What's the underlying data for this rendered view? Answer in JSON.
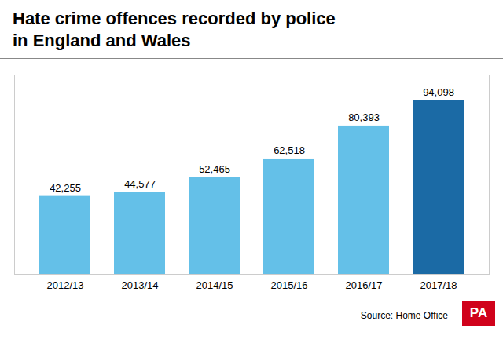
{
  "chart_data": {
    "type": "bar",
    "title": "Hate crime offences recorded by police\nin England and Wales",
    "categories": [
      "2012/13",
      "2013/14",
      "2014/15",
      "2015/16",
      "2016/17",
      "2017/18"
    ],
    "values": [
      42255,
      44577,
      52465,
      62518,
      80393,
      94098
    ],
    "value_labels": [
      "42,255",
      "44,577",
      "52,465",
      "62,518",
      "80,393",
      "94,098"
    ],
    "colors": [
      "#64C0E8",
      "#64C0E8",
      "#64C0E8",
      "#64C0E8",
      "#64C0E8",
      "#1B6AA5"
    ],
    "ylim": [
      0,
      108000
    ],
    "data_labels": true,
    "tick_labels": "x",
    "annotations": [
      {
        "text": "Source: Home Office"
      },
      {
        "text": "PA",
        "color": "#FFFFFF",
        "background": "#D0021B"
      }
    ]
  }
}
